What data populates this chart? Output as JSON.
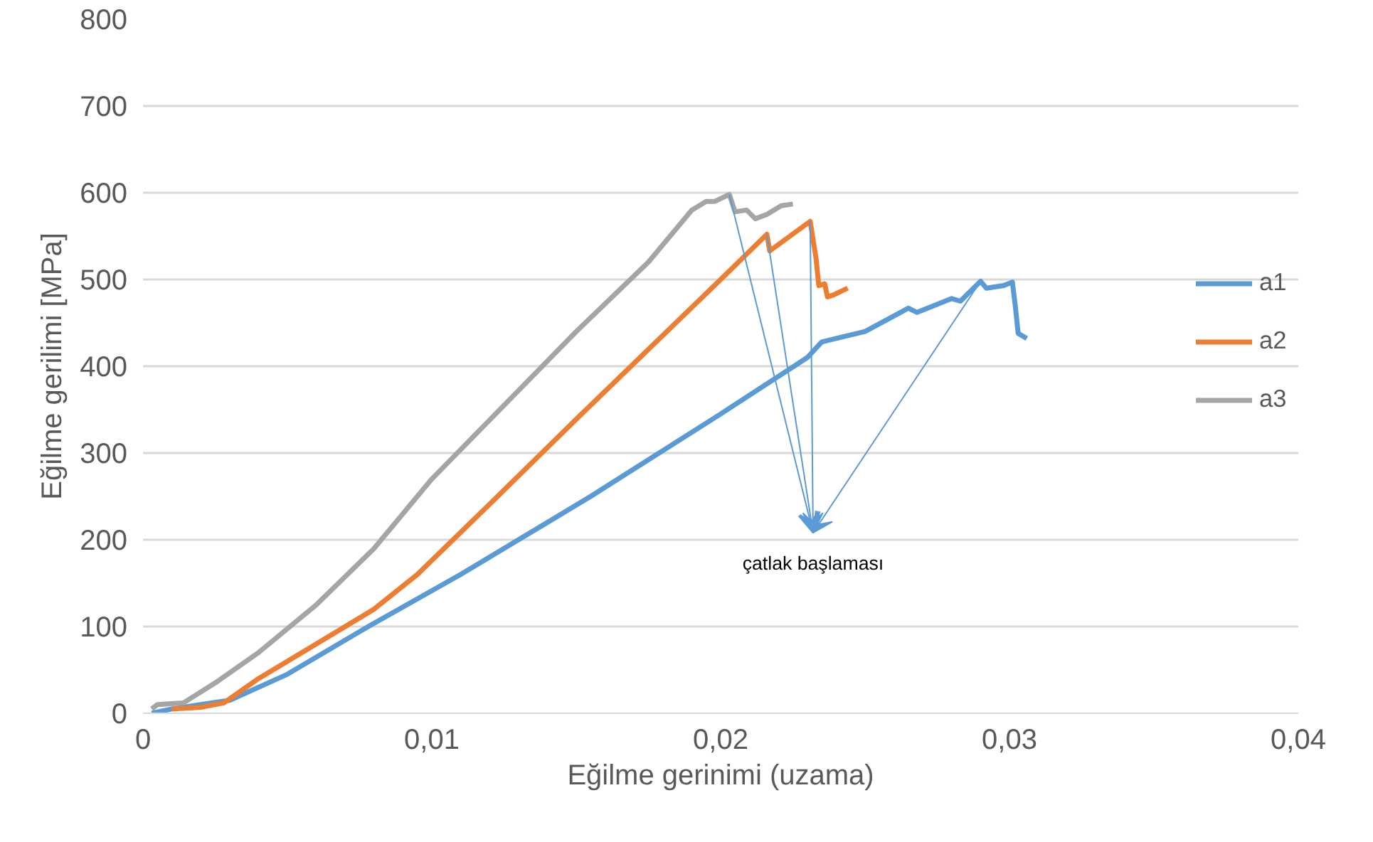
{
  "chart_data": {
    "type": "line",
    "xlabel": "Eğilme gerinimi (uzama)",
    "ylabel": "Eğilme gerilimi [MPa]",
    "xlim": [
      0,
      0.04
    ],
    "ylim": [
      0,
      800
    ],
    "xticks": [
      0,
      {
        "value": 0.01,
        "label": "0,01"
      },
      {
        "value": 0.02,
        "label": "0,02"
      },
      {
        "value": 0.03,
        "label": "0,03"
      },
      {
        "value": 0.04,
        "label": "0,04"
      }
    ],
    "yticks": [
      0,
      100,
      200,
      300,
      400,
      500,
      600,
      700,
      800
    ],
    "grid": "y",
    "legend": "right",
    "line_style": "solid",
    "annotations": [
      {
        "text": "çatlak başlaması",
        "x": 0.0216,
        "y": 552
      }
    ],
    "series": [
      {
        "name": "a1",
        "color": "#5b9bd5",
        "x": [
          0.0003,
          0.001,
          0.002,
          0.003,
          0.005,
          0.0078,
          0.011,
          0.0155,
          0.02,
          0.023,
          0.0235,
          0.024,
          0.025,
          0.0265,
          0.0268,
          0.028,
          0.0283,
          0.029,
          0.0292,
          0.0298,
          0.0301,
          0.0302,
          0.0303,
          0.0306
        ],
        "values": [
          0,
          5,
          10,
          15,
          45,
          100,
          160,
          250,
          345,
          410,
          428,
          432,
          440,
          467,
          462,
          478,
          475,
          498,
          490,
          493,
          497,
          470,
          438,
          432
        ]
      },
      {
        "name": "a2",
        "color": "#ed7d31",
        "x": [
          0.001,
          0.002,
          0.0028,
          0.004,
          0.006,
          0.008,
          0.0095,
          0.012,
          0.015,
          0.02,
          0.0216,
          0.0217,
          0.0231,
          0.0233,
          0.0234,
          0.0236,
          0.0237,
          0.0239,
          0.0244
        ],
        "values": [
          5,
          7,
          12,
          40,
          80,
          120,
          160,
          241,
          339,
          500,
          552,
          533,
          567,
          525,
          493,
          495,
          480,
          482,
          490
        ]
      },
      {
        "name": "a3",
        "color": "#a5a5a5",
        "x": [
          0.0003,
          0.0005,
          0.0014,
          0.0025,
          0.004,
          0.006,
          0.008,
          0.01,
          0.015,
          0.0175,
          0.019,
          0.0195,
          0.0198,
          0.0203,
          0.0205,
          0.0209,
          0.0212,
          0.0216,
          0.0221,
          0.0225
        ],
        "values": [
          5,
          10,
          12,
          35,
          70,
          125,
          190,
          270,
          440,
          520,
          580,
          590,
          590,
          598,
          578,
          580,
          570,
          575,
          585,
          587
        ]
      }
    ]
  }
}
